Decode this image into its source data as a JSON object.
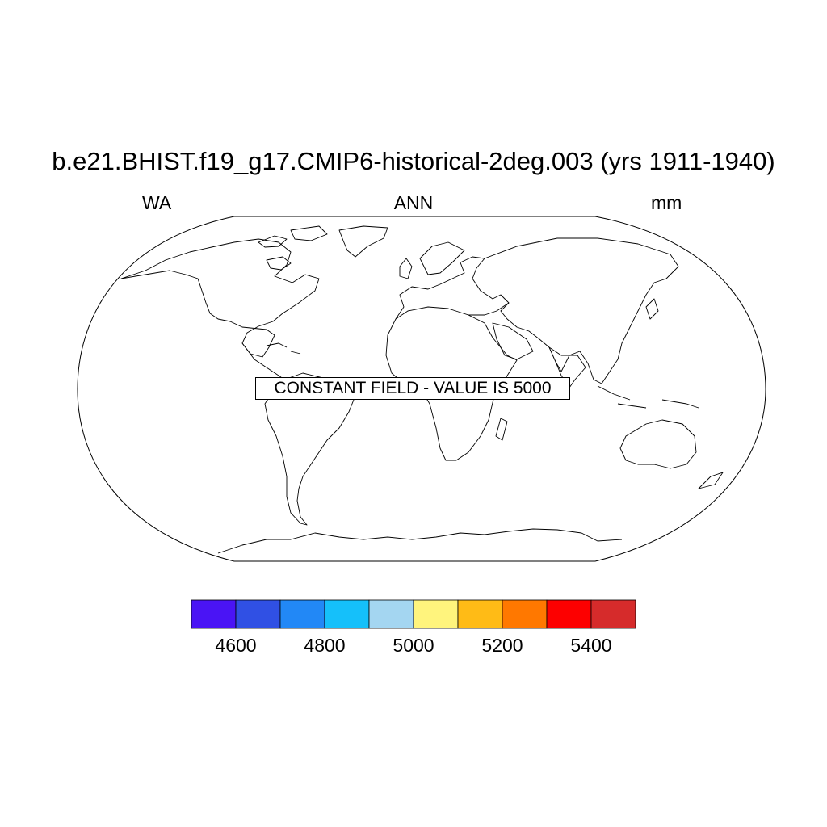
{
  "plot": {
    "title": "b.e21.BHIST.f19_g17.CMIP6-historical-2deg.003 (yrs 1911-1940)",
    "left_label": "WA",
    "center_label": "ANN",
    "right_label": "mm",
    "notice": "CONSTANT FIELD - VALUE IS 5000"
  },
  "colorbar": {
    "colors": [
      "#4a14f5",
      "#3050e4",
      "#2288f6",
      "#15c0fa",
      "#a4d6f1",
      "#fff47d",
      "#ffbb16",
      "#ff7800",
      "#fd0000",
      "#d62b2b"
    ],
    "tick_labels": [
      "4600",
      "4800",
      "5000",
      "5200",
      "5400"
    ]
  },
  "map": {
    "projection": "Robinson",
    "coastlines": true,
    "constant_value": 5000
  }
}
